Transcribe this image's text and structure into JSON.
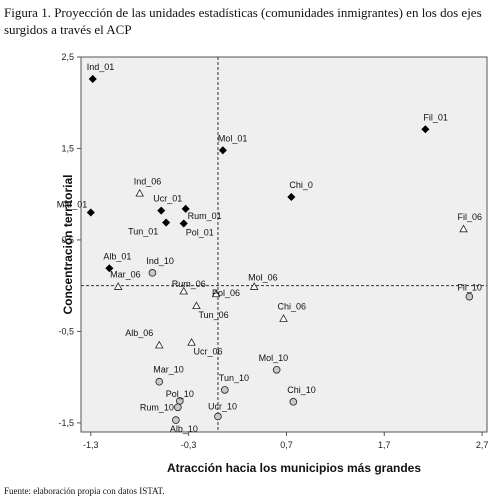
{
  "figure": {
    "caption": "Figura 1. Proyección de las unidades estadísticas (comunidades inmigrantes) en los dos ejes surgidos a través el ACP",
    "source": "Fuente: elaboración propia con datos ISTAT."
  },
  "chart_data": {
    "type": "scatter",
    "xlabel": "Atracción hacia los municipios más grandes",
    "ylabel": "Concentración territorial",
    "xlim": [
      -1.4,
      2.75
    ],
    "ylim": [
      -1.6,
      2.5
    ],
    "xticks": [
      -1.3,
      -0.3,
      0.7,
      1.7,
      2.7
    ],
    "xtick_labels": [
      "-1,3",
      "-0,3",
      "0,7",
      "1,7",
      "2,7"
    ],
    "yticks": [
      2.5,
      1.5,
      0.5,
      -0.5,
      -1.5
    ],
    "ytick_labels": [
      "2,5",
      "1,5",
      "0,5",
      "-0,5",
      "-1,5"
    ],
    "reference_lines": {
      "x": 0,
      "y": 0
    },
    "grid": false,
    "legend": "none",
    "series": [
      {
        "marker": "diamond",
        "fill": "#000000",
        "points": [
          {
            "label": "Ind_01",
            "x": -1.28,
            "y": 2.26
          },
          {
            "label": "Fil_01",
            "x": 2.12,
            "y": 1.71
          },
          {
            "label": "Mol_01",
            "x": 0.05,
            "y": 1.48
          },
          {
            "label": "Chi_0",
            "x": 0.75,
            "y": 0.97
          },
          {
            "label": "Mar_01",
            "x": -1.3,
            "y": 0.8
          },
          {
            "label": "Ucr_01",
            "x": -0.58,
            "y": 0.82
          },
          {
            "label": "Rum_01",
            "x": -0.33,
            "y": 0.84
          },
          {
            "label": "Tun_01",
            "x": -0.53,
            "y": 0.69
          },
          {
            "label": "Pol_01",
            "x": -0.35,
            "y": 0.68
          },
          {
            "label": "Alb_01",
            "x": -1.11,
            "y": 0.19
          }
        ]
      },
      {
        "marker": "triangle",
        "fill": "#ffffff",
        "points": [
          {
            "label": "Ind_06",
            "x": -0.8,
            "y": 1.01
          },
          {
            "label": "Fil_06",
            "x": 2.51,
            "y": 0.62
          },
          {
            "label": "Mar_06",
            "x": -1.02,
            "y": -0.01
          },
          {
            "label": "Rum_06",
            "x": -0.35,
            "y": -0.06
          },
          {
            "label": "Pol_06",
            "x": -0.02,
            "y": -0.09
          },
          {
            "label": "Mol_06",
            "x": 0.37,
            "y": -0.01
          },
          {
            "label": "Tun_06",
            "x": -0.22,
            "y": -0.22
          },
          {
            "label": "Chi_06",
            "x": 0.67,
            "y": -0.36
          },
          {
            "label": "Ucr_06",
            "x": -0.27,
            "y": -0.62
          },
          {
            "label": "Alb_06",
            "x": -0.6,
            "y": -0.65
          }
        ]
      },
      {
        "marker": "circle",
        "fill": "#c8c8c8",
        "points": [
          {
            "label": "Ind_10",
            "x": -0.67,
            "y": 0.14
          },
          {
            "label": "Fil_10",
            "x": 2.57,
            "y": -0.12
          },
          {
            "label": "Mol_10",
            "x": 0.6,
            "y": -0.92
          },
          {
            "label": "Mar_10",
            "x": -0.6,
            "y": -1.05
          },
          {
            "label": "Tun_10",
            "x": 0.07,
            "y": -1.14
          },
          {
            "label": "Chi_10",
            "x": 0.77,
            "y": -1.27
          },
          {
            "label": "Pol_10",
            "x": -0.39,
            "y": -1.26
          },
          {
            "label": "Rum_10",
            "x": -0.41,
            "y": -1.33
          },
          {
            "label": "Ucr_10",
            "x": 0.0,
            "y": -1.43
          },
          {
            "label": "Alb_10",
            "x": -0.43,
            "y": -1.47
          }
        ]
      }
    ]
  }
}
